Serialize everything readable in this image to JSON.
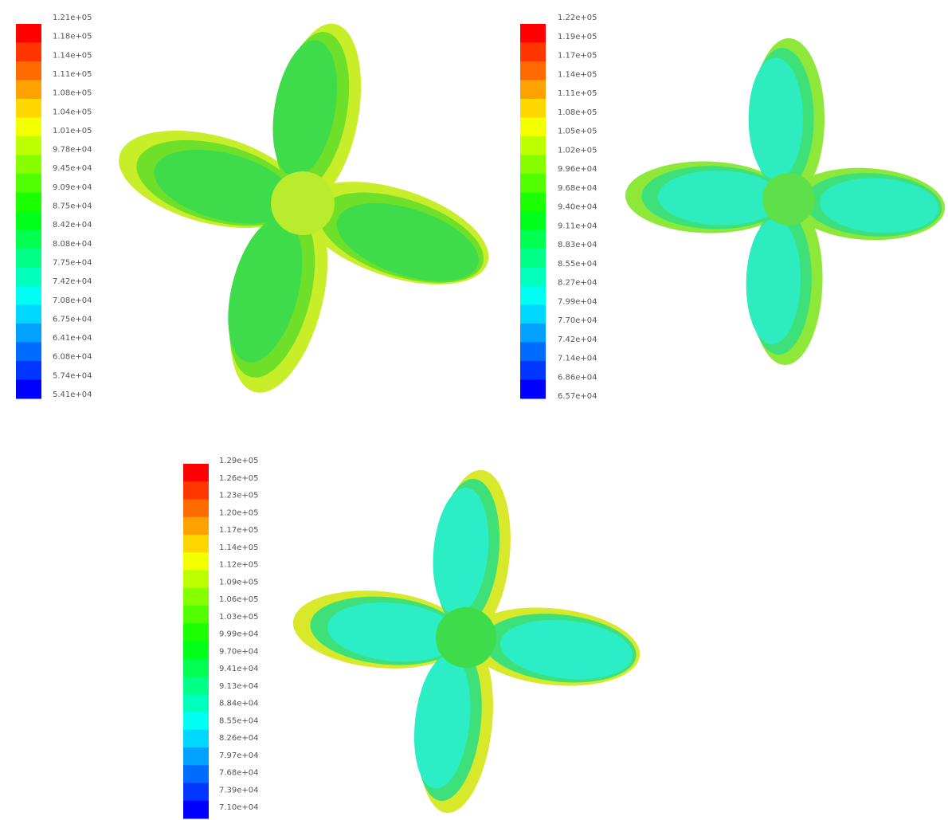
{
  "panels": [
    {
      "colorbar_labels": [
        "1.21e+05",
        "1.18e+05",
        "1.14e+05",
        "1.11e+05",
        "1.08e+05",
        "1.04e+05",
        "1.01e+05",
        "9.78e+04",
        "9.45e+04",
        "9.09e+04",
        "8.75e+04",
        "8.42e+04",
        "8.08e+04",
        "7.75e+04",
        "7.42e+04",
        "7.08e+04",
        "6.75e+04",
        "6.41e+04",
        "6.08e+04",
        "5.74e+04",
        "5.41e+04"
      ]
    },
    {
      "colorbar_labels": [
        "1.22e+05",
        "1.19e+05",
        "1.17e+05",
        "1.14e+05",
        "1.11e+05",
        "1.08e+05",
        "1.05e+05",
        "1.02e+05",
        "9.96e+04",
        "9.68e+04",
        "9.40e+04",
        "9.11e+04",
        "8.83e+04",
        "8.55e+04",
        "8.27e+04",
        "7.99e+04",
        "7.70e+04",
        "7.42e+04",
        "7.14e+04",
        "6.86e+04",
        "6.57e+04"
      ]
    },
    {
      "colorbar_labels": [
        "1.29e+05",
        "1.26e+05",
        "1.23e+05",
        "1.20e+05",
        "1.17e+05",
        "1.14e+05",
        "1.12e+05",
        "1.09e+05",
        "1.06e+05",
        "1.03e+05",
        "9.99e+04",
        "9.70e+04",
        "9.41e+04",
        "9.13e+04",
        "8.84e+04",
        "8.55e+04",
        "8.26e+04",
        "7.97e+04",
        "7.68e+04",
        "7.39e+04",
        "7.10e+04"
      ]
    }
  ]
}
